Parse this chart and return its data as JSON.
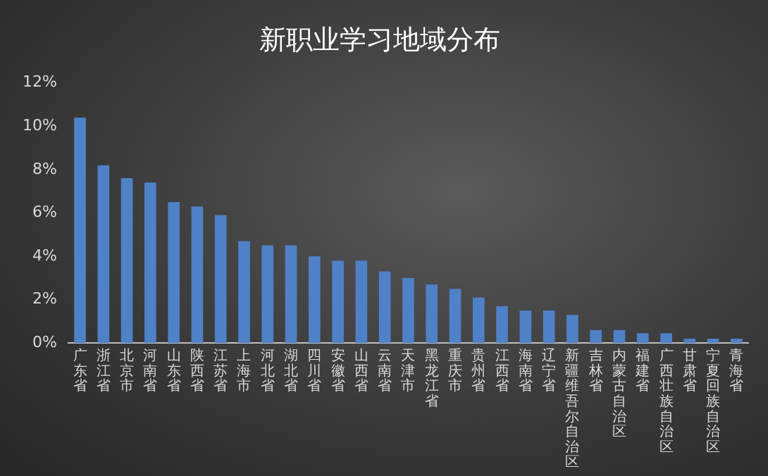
{
  "chart_data": {
    "type": "bar",
    "title": "新职业学习地域分布",
    "categories": [
      "广东省",
      "浙江省",
      "北京市",
      "河南省",
      "山东省",
      "陕西省",
      "江苏省",
      "上海市",
      "河北省",
      "湖北省",
      "四川省",
      "安徽省",
      "山西省",
      "云南省",
      "天津市",
      "黑龙江省",
      "重庆市",
      "贵州省",
      "江西省",
      "海南省",
      "辽宁省",
      "新疆维吾尔自治区",
      "吉林省",
      "内蒙古自治区",
      "福建省",
      "广西壮族自治区",
      "甘肃省",
      "宁夏回族自治区",
      "青海省"
    ],
    "values": [
      10.4,
      8.2,
      7.6,
      7.4,
      6.5,
      6.3,
      5.9,
      4.7,
      4.5,
      4.5,
      4.0,
      3.8,
      3.8,
      3.3,
      3.0,
      2.7,
      2.5,
      2.1,
      1.7,
      1.5,
      1.5,
      1.3,
      0.6,
      0.6,
      0.45,
      0.45,
      0.2,
      0.2,
      0.2
    ],
    "color": "#4f81c7",
    "ylim": [
      0,
      12
    ],
    "yticks": [
      {
        "value": 0,
        "label": "0%"
      },
      {
        "value": 2,
        "label": "2%"
      },
      {
        "value": 4,
        "label": "4%"
      },
      {
        "value": 6,
        "label": "6%"
      },
      {
        "value": 8,
        "label": "8%"
      },
      {
        "value": 10,
        "label": "10%"
      },
      {
        "value": 12,
        "label": "12%"
      }
    ],
    "grid": false,
    "legend": false
  }
}
